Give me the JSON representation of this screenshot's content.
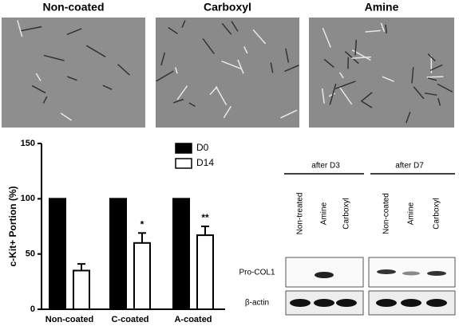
{
  "micrographs": {
    "labels": [
      "Non-coated",
      "Carboxyl",
      "Amine"
    ]
  },
  "chart_data": {
    "type": "bar",
    "ylabel": "c-Kit+ Portion (%)",
    "categories": [
      "Non-coated",
      "C-coated",
      "A-coated"
    ],
    "series": [
      {
        "name": "D0",
        "color": "#000000",
        "values": [
          100,
          100,
          100
        ]
      },
      {
        "name": "D14",
        "color": "#ffffff",
        "values": [
          35,
          60,
          67
        ],
        "errors": [
          6,
          9,
          8
        ]
      }
    ],
    "significance": [
      null,
      "*",
      "**"
    ],
    "ylim": [
      0,
      150
    ],
    "yticks": [
      0,
      50,
      100,
      150
    ],
    "legend": "upper right"
  },
  "blot": {
    "groups": [
      "after D3",
      "after D7"
    ],
    "lanes": [
      "Non-treated",
      "Amine",
      "Carboxyl",
      "Non-coated",
      "Amine",
      "Carboxyl"
    ],
    "rows": [
      "Pro-COL1",
      "β-actin"
    ]
  }
}
